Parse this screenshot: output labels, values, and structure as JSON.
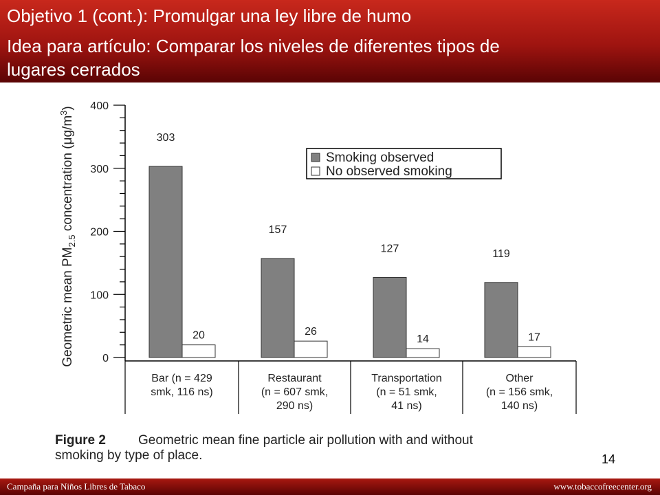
{
  "header": {
    "line1": "Objetivo 1 (cont.): Promulgar una ley libre de humo",
    "line2": "Idea para artículo: Comparar los niveles de diferentes tipos de",
    "line3": "lugares cerrados"
  },
  "chart_data": {
    "type": "bar",
    "ylabel_prefix": "Geometric mean PM",
    "ylabel_subscript": "2.5",
    "ylabel_suffix": " concentration (μg/m",
    "ylabel_superscript": "3",
    "ylabel_close": ")",
    "ylim": [
      0,
      400
    ],
    "yticks": [
      0,
      100,
      200,
      300,
      400
    ],
    "categories": [
      [
        "Bar (n = 429",
        "smk, 116 ns)"
      ],
      [
        "Restaurant",
        "(n = 607 smk,",
        "290 ns)"
      ],
      [
        "Transportation",
        "(n = 51 smk,",
        "41 ns)"
      ],
      [
        "Other",
        "(n = 156 smk,",
        "140 ns)"
      ]
    ],
    "series": [
      {
        "name": "Smoking observed",
        "values": [
          303,
          157,
          127,
          119
        ],
        "color": "#808080"
      },
      {
        "name": "No observed smoking",
        "values": [
          20,
          26,
          14,
          17
        ],
        "color": "#ffffff"
      }
    ],
    "legend_position": "top-right",
    "caption_label": "Figure 2",
    "caption_text_1": "Geometric mean fine particle air pollution with and without",
    "caption_text_2": "smoking by type of place."
  },
  "page_number": "14",
  "footer": {
    "left": "Campaña para Niños Libres de Tabaco",
    "right": "www.tobaccofreecenter.org"
  }
}
